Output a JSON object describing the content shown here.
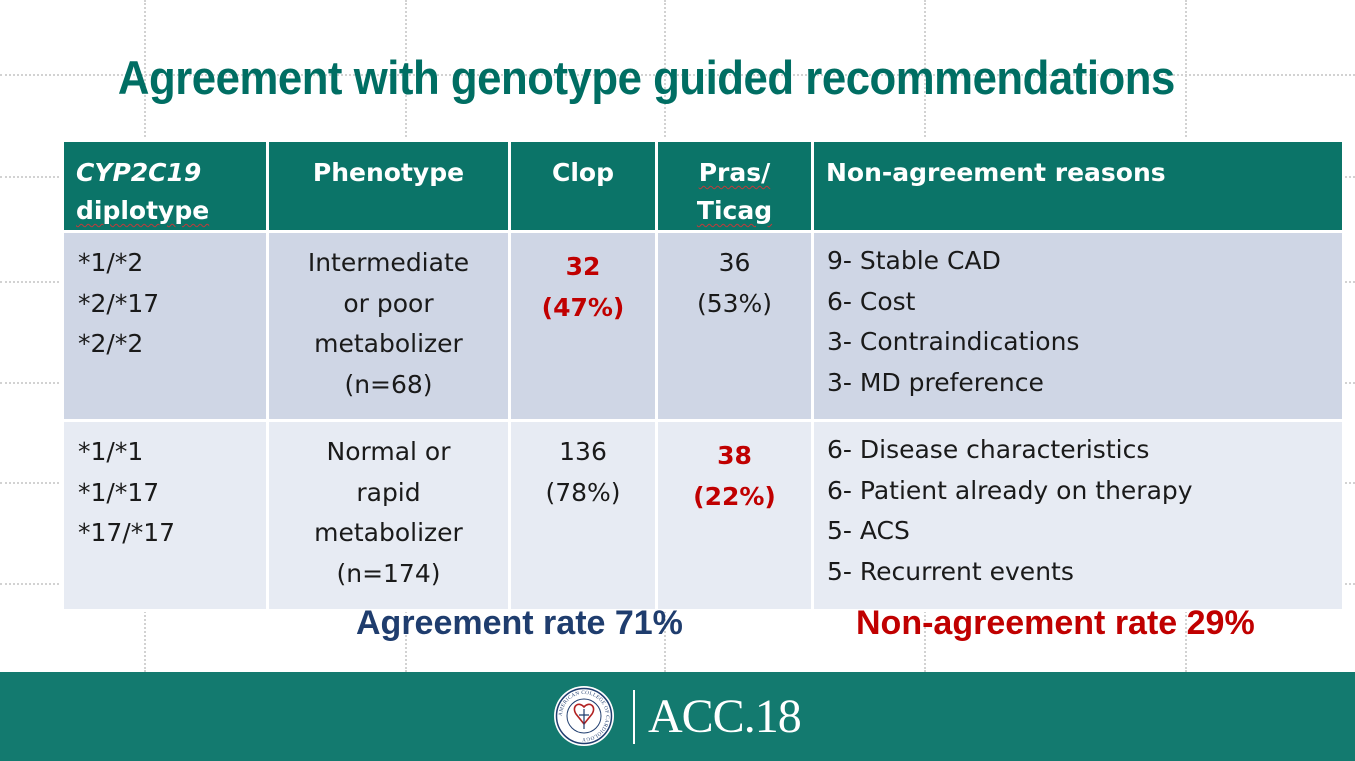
{
  "title": "Agreement with genotype guided recommendations",
  "table": {
    "headers": {
      "diplotype_line1": "CYP2C19",
      "diplotype_line2": "diplotype",
      "phenotype": "Phenotype",
      "clop": "Clop",
      "pras_line1": "Pras/",
      "pras_line2": "Ticag",
      "reasons": "Non-agreement reasons"
    },
    "rows": [
      {
        "diplotypes": [
          "*1/*2",
          "*2/*17",
          "*2/*2"
        ],
        "phenotype": [
          "Intermediate",
          "or poor",
          "metabolizer",
          "(n=68)"
        ],
        "clop": [
          "32",
          "(47%)"
        ],
        "pras": [
          "36",
          "(53%)"
        ],
        "reasons": [
          "9- Stable CAD",
          "6- Cost",
          "3- Contraindications",
          "3- MD preference"
        ]
      },
      {
        "diplotypes": [
          "*1/*1",
          "*1/*17",
          "*17/*17"
        ],
        "phenotype": [
          "Normal or",
          "rapid",
          "metabolizer",
          "(n=174)"
        ],
        "clop": [
          "136",
          "(78%)"
        ],
        "pras": [
          "38",
          "(22%)"
        ],
        "reasons": [
          "6- Disease characteristics",
          "6- Patient already on therapy",
          "5- ACS",
          "5- Recurrent events"
        ]
      }
    ]
  },
  "agreement_rate": "Agreement rate 71%",
  "non_agreement_rate": "Non-agreement rate 29%",
  "footer": {
    "seal_text": "AMERICAN COLLEGE OF CARDIOLOGY",
    "brand": "ACC.18"
  },
  "colors": {
    "title": "#006e63",
    "header_bg": "#0b7468",
    "row1_bg": "#cfd6e5",
    "row2_bg": "#e7ebf3",
    "highlight": "#c00000",
    "agreement": "#1f3d6e",
    "footer_bg": "#137a6f"
  }
}
